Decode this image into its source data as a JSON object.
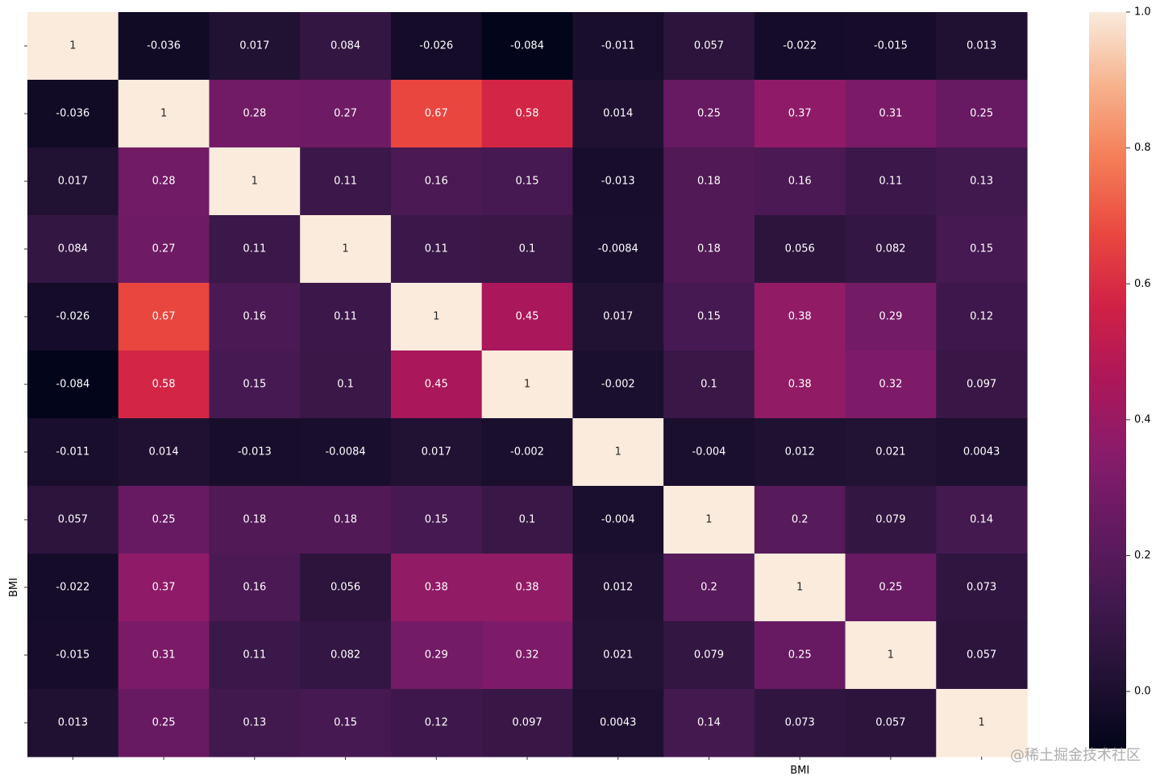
{
  "chart_data": {
    "type": "heatmap",
    "title": "",
    "xlabel": "",
    "ylabel": "",
    "labels": [
      "",
      "",
      "",
      "",
      "",
      "",
      "",
      "",
      "BMI",
      "",
      ""
    ],
    "matrix": [
      [
        1,
        -0.036,
        0.017,
        0.084,
        -0.026,
        -0.084,
        -0.011,
        0.057,
        -0.022,
        -0.015,
        0.013
      ],
      [
        -0.036,
        1,
        0.28,
        0.27,
        0.67,
        0.58,
        0.014,
        0.25,
        0.37,
        0.31,
        0.25
      ],
      [
        0.017,
        0.28,
        1,
        0.11,
        0.16,
        0.15,
        -0.013,
        0.18,
        0.16,
        0.11,
        0.13
      ],
      [
        0.084,
        0.27,
        0.11,
        1,
        0.11,
        0.1,
        -0.0084,
        0.18,
        0.056,
        0.082,
        0.15
      ],
      [
        -0.026,
        0.67,
        0.16,
        0.11,
        1,
        0.45,
        0.017,
        0.15,
        0.38,
        0.29,
        0.12
      ],
      [
        -0.084,
        0.58,
        0.15,
        0.1,
        0.45,
        1,
        -0.002,
        0.1,
        0.38,
        0.32,
        0.097
      ],
      [
        -0.011,
        0.014,
        -0.013,
        -0.0084,
        0.017,
        -0.002,
        1,
        -0.004,
        0.012,
        0.021,
        0.0043
      ],
      [
        0.057,
        0.25,
        0.18,
        0.18,
        0.15,
        0.1,
        -0.004,
        1,
        0.2,
        0.079,
        0.14
      ],
      [
        -0.022,
        0.37,
        0.16,
        0.056,
        0.38,
        0.38,
        0.012,
        0.2,
        1,
        0.25,
        0.073
      ],
      [
        -0.015,
        0.31,
        0.11,
        0.082,
        0.29,
        0.32,
        0.021,
        0.079,
        0.25,
        1,
        0.057
      ],
      [
        0.013,
        0.25,
        0.13,
        0.15,
        0.12,
        0.097,
        0.0043,
        0.14,
        0.073,
        0.057,
        1
      ]
    ],
    "annotations": [
      [
        "1",
        "-0.036",
        "0.017",
        "0.084",
        "-0.026",
        "-0.084",
        "-0.011",
        "0.057",
        "-0.022",
        "-0.015",
        "0.013"
      ],
      [
        "-0.036",
        "1",
        "0.28",
        "0.27",
        "0.67",
        "0.58",
        "0.014",
        "0.25",
        "0.37",
        "0.31",
        "0.25"
      ],
      [
        "0.017",
        "0.28",
        "1",
        "0.11",
        "0.16",
        "0.15",
        "-0.013",
        "0.18",
        "0.16",
        "0.11",
        "0.13"
      ],
      [
        "0.084",
        "0.27",
        "0.11",
        "1",
        "0.11",
        "0.1",
        "-0.0084",
        "0.18",
        "0.056",
        "0.082",
        "0.15"
      ],
      [
        "-0.026",
        "0.67",
        "0.16",
        "0.11",
        "1",
        "0.45",
        "0.017",
        "0.15",
        "0.38",
        "0.29",
        "0.12"
      ],
      [
        "-0.084",
        "0.58",
        "0.15",
        "0.1",
        "0.45",
        "1",
        "-0.002",
        "0.1",
        "0.38",
        "0.32",
        "0.097"
      ],
      [
        "-0.011",
        "0.014",
        "-0.013",
        "-0.0084",
        "0.017",
        "-0.002",
        "1",
        "-0.004",
        "0.012",
        "0.021",
        "0.0043"
      ],
      [
        "0.057",
        "0.25",
        "0.18",
        "0.18",
        "0.15",
        "0.1",
        "-0.004",
        "1",
        "0.2",
        "0.079",
        "0.14"
      ],
      [
        "-0.022",
        "0.37",
        "0.16",
        "0.056",
        "0.38",
        "0.38",
        "0.012",
        "0.2",
        "1",
        "0.25",
        "0.073"
      ],
      [
        "-0.015",
        "0.31",
        "0.11",
        "0.082",
        "0.29",
        "0.32",
        "0.021",
        "0.079",
        "0.25",
        "1",
        "0.057"
      ],
      [
        "0.013",
        "0.25",
        "0.13",
        "0.15",
        "0.12",
        "0.097",
        "0.0043",
        "0.14",
        "0.073",
        "0.057",
        "1"
      ]
    ],
    "colorbar": {
      "min": -0.084,
      "max": 1.0,
      "ticks": [
        0.0,
        0.2,
        0.4,
        0.6,
        0.8,
        1.0
      ],
      "tick_labels": [
        "0.0",
        "0.2",
        "0.4",
        "0.6",
        "0.8",
        "1.0"
      ],
      "colormap": "rocket"
    },
    "grid": false,
    "legend": "colorbar-right"
  },
  "watermark": "@稀土掘金技术社区"
}
